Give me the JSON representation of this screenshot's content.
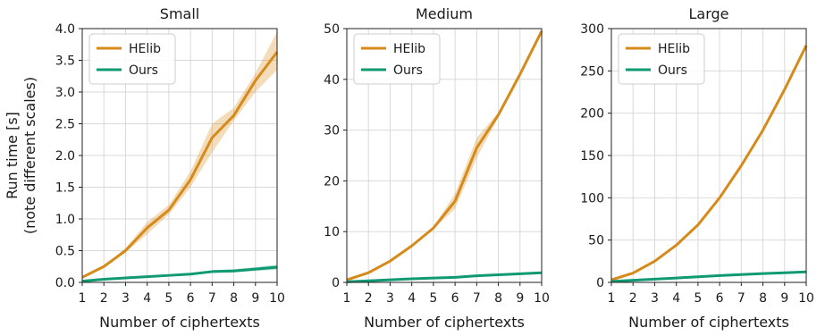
{
  "figure": {
    "ylabel_line1": "Run time [s]",
    "ylabel_line2": "(note different scales)"
  },
  "colors": {
    "helib": "#D68A1A",
    "ours": "#0F9A73"
  },
  "chart_data": [
    {
      "type": "line",
      "title": "Small",
      "xlabel": "Number of ciphertexts",
      "ylabel": "Run time [s] (note different scales)",
      "x": [
        1,
        2,
        3,
        4,
        5,
        6,
        7,
        8,
        9,
        10
      ],
      "xlim": [
        1,
        10
      ],
      "ylim": [
        0,
        4.0
      ],
      "yticks": [
        "0.0",
        "0.5",
        "1.0",
        "1.5",
        "2.0",
        "2.5",
        "3.0",
        "3.5",
        "4.0"
      ],
      "ytick_values": [
        0,
        0.5,
        1.0,
        1.5,
        2.0,
        2.5,
        3.0,
        3.5,
        4.0
      ],
      "grid": true,
      "legend": "top-left",
      "series": [
        {
          "name": "HElib",
          "values": [
            0.08,
            0.25,
            0.5,
            0.86,
            1.14,
            1.62,
            2.28,
            2.63,
            3.18,
            3.63
          ],
          "lower": [
            0.07,
            0.24,
            0.47,
            0.76,
            1.07,
            1.5,
            2.05,
            2.55,
            3.0,
            3.35
          ],
          "upper": [
            0.09,
            0.26,
            0.54,
            0.95,
            1.22,
            1.75,
            2.5,
            2.75,
            3.3,
            3.95
          ]
        },
        {
          "name": "Ours",
          "values": [
            0.02,
            0.05,
            0.07,
            0.09,
            0.11,
            0.13,
            0.17,
            0.18,
            0.21,
            0.24
          ],
          "lower": [
            0.015,
            0.04,
            0.06,
            0.08,
            0.1,
            0.12,
            0.15,
            0.16,
            0.18,
            0.2
          ],
          "upper": [
            0.025,
            0.06,
            0.08,
            0.1,
            0.12,
            0.14,
            0.19,
            0.21,
            0.24,
            0.28
          ]
        }
      ]
    },
    {
      "type": "line",
      "title": "Medium",
      "xlabel": "Number of ciphertexts",
      "ylabel": "",
      "x": [
        1,
        2,
        3,
        4,
        5,
        6,
        7,
        8,
        9,
        10
      ],
      "xlim": [
        1,
        10
      ],
      "ylim": [
        0,
        50
      ],
      "yticks": [
        "0",
        "10",
        "20",
        "30",
        "40",
        "50"
      ],
      "ytick_values": [
        0,
        10,
        20,
        30,
        40,
        50
      ],
      "grid": true,
      "legend": "top-left",
      "series": [
        {
          "name": "HElib",
          "values": [
            0.5,
            1.9,
            4.2,
            7.2,
            10.7,
            16.0,
            26.5,
            33.0,
            41.0,
            49.5
          ],
          "lower": [
            0.45,
            1.8,
            4.0,
            7.0,
            10.5,
            14.5,
            24.5,
            32.5,
            40.5,
            49.0
          ],
          "upper": [
            0.55,
            2.0,
            4.4,
            7.4,
            10.9,
            17.5,
            28.5,
            33.5,
            41.5,
            50.0
          ]
        },
        {
          "name": "Ours",
          "values": [
            0.1,
            0.3,
            0.5,
            0.7,
            0.85,
            1.0,
            1.3,
            1.5,
            1.7,
            1.9
          ],
          "lower": [
            0.08,
            0.25,
            0.45,
            0.65,
            0.8,
            0.95,
            1.2,
            1.4,
            1.6,
            1.8
          ],
          "upper": [
            0.12,
            0.35,
            0.55,
            0.75,
            0.9,
            1.05,
            1.4,
            1.6,
            1.8,
            2.0
          ]
        }
      ]
    },
    {
      "type": "line",
      "title": "Large",
      "xlabel": "Number of ciphertexts",
      "ylabel": "",
      "x": [
        1,
        2,
        3,
        4,
        5,
        6,
        7,
        8,
        9,
        10
      ],
      "xlim": [
        1,
        10
      ],
      "ylim": [
        0,
        300
      ],
      "yticks": [
        "0",
        "50",
        "100",
        "150",
        "200",
        "250",
        "300"
      ],
      "ytick_values": [
        0,
        50,
        100,
        150,
        200,
        250,
        300
      ],
      "grid": true,
      "legend": "top-left",
      "series": [
        {
          "name": "HElib",
          "values": [
            3,
            11,
            25,
            44,
            68,
            100,
            138,
            180,
            228,
            280
          ],
          "lower": [
            2.8,
            10.7,
            24.5,
            43.5,
            66,
            99,
            137,
            179,
            227,
            279
          ],
          "upper": [
            3.2,
            11.3,
            25.5,
            44.5,
            70,
            101,
            139,
            181,
            229,
            281
          ]
        },
        {
          "name": "Ours",
          "values": [
            1,
            2.5,
            3.8,
            5.2,
            6.6,
            8.0,
            9.2,
            10.4,
            11.4,
            12.4
          ],
          "lower": [
            0.9,
            2.4,
            3.7,
            5.1,
            6.5,
            7.9,
            9.1,
            10.3,
            11.3,
            12.3
          ],
          "upper": [
            1.1,
            2.6,
            3.9,
            5.3,
            6.7,
            8.1,
            9.3,
            10.5,
            11.5,
            12.5
          ]
        }
      ]
    }
  ]
}
